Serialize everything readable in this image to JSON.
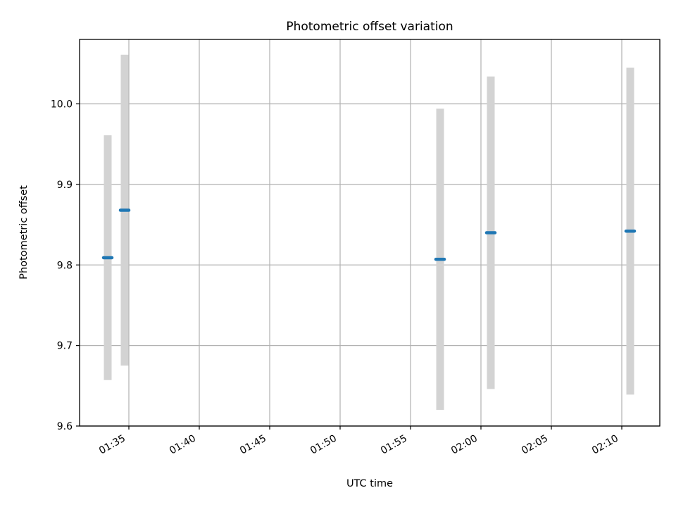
{
  "chart_data": {
    "type": "scatter",
    "title": "Photometric offset variation",
    "xlabel": "UTC time",
    "ylabel": "Photometric offset",
    "x_tick_labels": [
      "01:35",
      "01:40",
      "01:45",
      "01:50",
      "01:55",
      "02:00",
      "02:05",
      "02:10"
    ],
    "x_tick_minutes": [
      95,
      100,
      105,
      110,
      115,
      120,
      125,
      130
    ],
    "xlim_minutes": [
      91.5,
      132.7
    ],
    "y_tick_labels": [
      "9.6",
      "9.7",
      "9.8",
      "9.9",
      "10.0"
    ],
    "y_ticks": [
      9.6,
      9.7,
      9.8,
      9.9,
      10.0
    ],
    "ylim": [
      9.6,
      10.08
    ],
    "grid": true,
    "marker_color": "#1f77b4",
    "errorbar_color": "#d3d3d3",
    "points": [
      {
        "time": "01:33:30",
        "t_minutes": 93.5,
        "value": 9.809,
        "error": 0.152
      },
      {
        "time": "01:34:42",
        "t_minutes": 94.7,
        "value": 9.868,
        "error": 0.193
      },
      {
        "time": "01:57:06",
        "t_minutes": 117.1,
        "value": 9.807,
        "error": 0.187
      },
      {
        "time": "02:00:42",
        "t_minutes": 120.7,
        "value": 9.84,
        "error": 0.194
      },
      {
        "time": "02:10:36",
        "t_minutes": 130.6,
        "value": 9.842,
        "error": 0.203
      }
    ]
  }
}
